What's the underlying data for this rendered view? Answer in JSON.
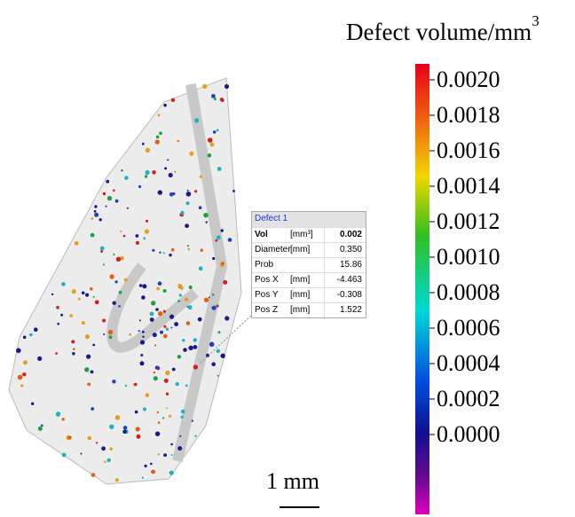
{
  "colorbar": {
    "title": "Defect volume/mm",
    "title_sup": "3",
    "ticks": [
      "0.0020",
      "0.0018",
      "0.0016",
      "0.0014",
      "0.0012",
      "0.0010",
      "0.0008",
      "0.0006",
      "0.0004",
      "0.0002",
      "0.0000"
    ]
  },
  "info_box": {
    "title": "Defect 1",
    "rows": [
      {
        "name": "Vol",
        "unit": "[mm³]",
        "value": "0.002"
      },
      {
        "name": "Diameter",
        "unit": "[mm]",
        "value": "0.350"
      },
      {
        "name": "Prob",
        "value": "15.86"
      },
      {
        "name": "Pos X",
        "unit": "[mm]",
        "value": "-4.463"
      },
      {
        "name": "Pos Y",
        "unit": "[mm]",
        "value": "-0.308"
      },
      {
        "name": "Pos Z",
        "unit": "[mm]",
        "value": "1.522"
      }
    ]
  },
  "scale_bar": {
    "label": "1 mm"
  }
}
